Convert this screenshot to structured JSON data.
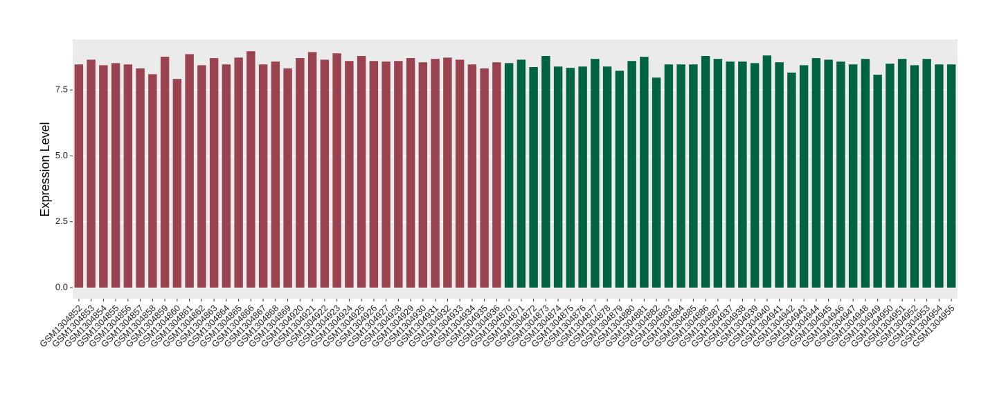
{
  "chart_data": {
    "type": "bar",
    "y_label": "Expression Level",
    "categories": [
      "GSM1304852",
      "GSM1304853",
      "GSM1304854",
      "GSM1304855",
      "GSM1304856",
      "GSM1304857",
      "GSM1304858",
      "GSM1304859",
      "GSM1304860",
      "GSM1304861",
      "GSM1304862",
      "GSM1304863",
      "GSM1304864",
      "GSM1304865",
      "GSM1304866",
      "GSM1304867",
      "GSM1304868",
      "GSM1304869",
      "GSM1304920",
      "GSM1304921",
      "GSM1304922",
      "GSM1304923",
      "GSM1304924",
      "GSM1304925",
      "GSM1304926",
      "GSM1304927",
      "GSM1304928",
      "GSM1304929",
      "GSM1304930",
      "GSM1304931",
      "GSM1304932",
      "GSM1304933",
      "GSM1304934",
      "GSM1304935",
      "GSM1304936",
      "GSM1304870",
      "GSM1304871",
      "GSM1304872",
      "GSM1304873",
      "GSM1304874",
      "GSM1304875",
      "GSM1304876",
      "GSM1304877",
      "GSM1304878",
      "GSM1304879",
      "GSM1304880",
      "GSM1304881",
      "GSM1304882",
      "GSM1304883",
      "GSM1304884",
      "GSM1304885",
      "GSM1304886",
      "GSM1304887",
      "GSM1304937",
      "GSM1304938",
      "GSM1304939",
      "GSM1304940",
      "GSM1304941",
      "GSM1304942",
      "GSM1304943",
      "GSM1304944",
      "GSM1304945",
      "GSM1304946",
      "GSM1304947",
      "GSM1304948",
      "GSM1304949",
      "GSM1304950",
      "GSM1304951",
      "GSM1304952",
      "GSM1304953",
      "GSM1304954",
      "GSM1304955"
    ],
    "values": [
      8.47,
      8.65,
      8.44,
      8.52,
      8.47,
      8.32,
      8.1,
      8.76,
      7.92,
      8.86,
      8.44,
      8.71,
      8.47,
      8.73,
      8.97,
      8.47,
      8.58,
      8.32,
      8.71,
      8.94,
      8.65,
      8.89,
      8.6,
      8.79,
      8.6,
      8.58,
      8.6,
      8.71,
      8.55,
      8.68,
      8.73,
      8.65,
      8.47,
      8.32,
      8.55,
      8.52,
      8.65,
      8.37,
      8.79,
      8.39,
      8.34,
      8.39,
      8.68,
      8.39,
      8.23,
      8.6,
      8.76,
      7.97,
      8.47,
      8.47,
      8.47,
      8.79,
      8.68,
      8.58,
      8.58,
      8.52,
      8.81,
      8.55,
      8.16,
      8.44,
      8.71,
      8.65,
      8.58,
      8.47,
      8.68,
      8.08,
      8.5,
      8.68,
      8.44,
      8.68,
      8.47,
      8.47
    ],
    "colors": [
      "#9a4350",
      "#9a4350",
      "#9a4350",
      "#9a4350",
      "#9a4350",
      "#9a4350",
      "#9a4350",
      "#9a4350",
      "#9a4350",
      "#9a4350",
      "#9a4350",
      "#9a4350",
      "#9a4350",
      "#9a4350",
      "#9a4350",
      "#9a4350",
      "#9a4350",
      "#9a4350",
      "#9a4350",
      "#9a4350",
      "#9a4350",
      "#9a4350",
      "#9a4350",
      "#9a4350",
      "#9a4350",
      "#9a4350",
      "#9a4350",
      "#9a4350",
      "#9a4350",
      "#9a4350",
      "#9a4350",
      "#9a4350",
      "#9a4350",
      "#9a4350",
      "#9a4350",
      "#006341",
      "#006341",
      "#006341",
      "#006341",
      "#006341",
      "#006341",
      "#006341",
      "#006341",
      "#006341",
      "#006341",
      "#006341",
      "#006341",
      "#006341",
      "#006341",
      "#006341",
      "#006341",
      "#006341",
      "#006341",
      "#006341",
      "#006341",
      "#006341",
      "#006341",
      "#006341",
      "#006341",
      "#006341",
      "#006341",
      "#006341",
      "#006341",
      "#006341",
      "#006341",
      "#006341",
      "#006341",
      "#006341",
      "#006341",
      "#006341",
      "#006341",
      "#006341"
    ],
    "ylim": [
      -0.42,
      9.42
    ],
    "yticks": [
      {
        "value": 0,
        "label": "0.0"
      },
      {
        "value": 2.5,
        "label": "2.5"
      },
      {
        "value": 5,
        "label": "5.0"
      },
      {
        "value": 7.5,
        "label": "7.5"
      }
    ],
    "grid": true
  }
}
